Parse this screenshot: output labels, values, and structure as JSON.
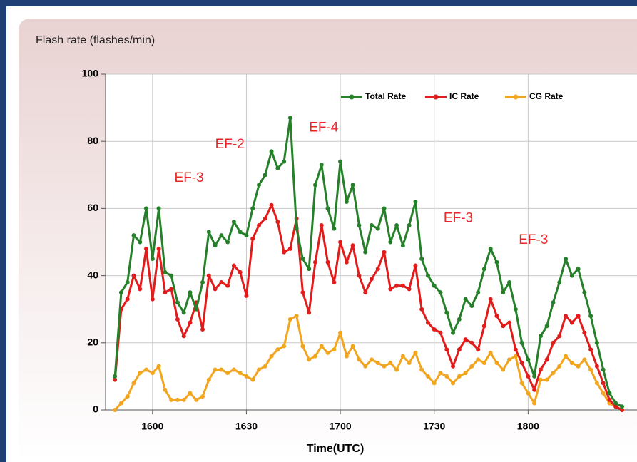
{
  "chart_data": {
    "type": "line",
    "title": "Flash rate (flashes/min)",
    "xlabel": "Time(UTC)",
    "x": [
      948,
      950,
      952,
      954,
      956,
      958,
      960,
      962,
      964,
      966,
      968,
      970,
      972,
      974,
      976,
      978,
      980,
      982,
      984,
      986,
      988,
      990,
      992,
      994,
      996,
      998,
      1000,
      1002,
      1004,
      1006,
      1008,
      1010,
      1012,
      1014,
      1016,
      1018,
      1020,
      1022,
      1024,
      1026,
      1028,
      1030,
      1032,
      1034,
      1036,
      1038,
      1040,
      1042,
      1044,
      1046,
      1048,
      1050,
      1052,
      1054,
      1056,
      1058,
      1060,
      1062,
      1064,
      1066,
      1068,
      1070,
      1072,
      1074,
      1076,
      1078,
      1080,
      1082,
      1084,
      1086,
      1088,
      1090,
      1092,
      1094,
      1096,
      1098,
      1100,
      1102,
      1104,
      1106,
      1108,
      1110
    ],
    "series": [
      {
        "name": "Total Rate",
        "color": "#26802a",
        "values": [
          10,
          35,
          38,
          52,
          50,
          60,
          45,
          60,
          41,
          40,
          32,
          29,
          35,
          30,
          38,
          53,
          49,
          52,
          50,
          56,
          53,
          52,
          60,
          67,
          70,
          77,
          72,
          74,
          87,
          54,
          45,
          42,
          67,
          73,
          60,
          54,
          74,
          62,
          67,
          55,
          47,
          55,
          54,
          60,
          50,
          55,
          49,
          55,
          62,
          45,
          40,
          37,
          35,
          29,
          23,
          27,
          33,
          31,
          35,
          42,
          48,
          44,
          35,
          38,
          30,
          20,
          15,
          10,
          22,
          25,
          32,
          38,
          45,
          40,
          42,
          35,
          28,
          20,
          12,
          5,
          2,
          1
        ]
      },
      {
        "name": "IC Rate",
        "color": "#e21b1b",
        "values": [
          9,
          30,
          33,
          40,
          36,
          48,
          33,
          48,
          35,
          36,
          27,
          22,
          26,
          32,
          24,
          40,
          36,
          38,
          37,
          43,
          41,
          34,
          51,
          55,
          57,
          61,
          56,
          47,
          48,
          57,
          35,
          29,
          44,
          55,
          44,
          38,
          50,
          44,
          49,
          40,
          35,
          39,
          42,
          47,
          36,
          37,
          37,
          36,
          43,
          30,
          26,
          24,
          23,
          18,
          13,
          18,
          21,
          20,
          18,
          25,
          33,
          28,
          25,
          26,
          18,
          14,
          10,
          6,
          12,
          15,
          20,
          22,
          28,
          26,
          28,
          23,
          18,
          13,
          8,
          3,
          1,
          0
        ]
      },
      {
        "name": "CG Rate",
        "color": "#f2a51f",
        "values": [
          0,
          2,
          4,
          8,
          11,
          12,
          11,
          13,
          6,
          3,
          3,
          3,
          5,
          3,
          4,
          9,
          12,
          12,
          11,
          12,
          11,
          10,
          9,
          12,
          13,
          16,
          18,
          19,
          27,
          28,
          19,
          15,
          16,
          19,
          17,
          18,
          23,
          16,
          19,
          15,
          13,
          15,
          14,
          13,
          14,
          12,
          16,
          14,
          17,
          12,
          10,
          8,
          11,
          10,
          8,
          10,
          11,
          13,
          15,
          14,
          17,
          14,
          12,
          15,
          16,
          8,
          5,
          2,
          9,
          9,
          11,
          13,
          16,
          14,
          13,
          15,
          12,
          8,
          5,
          2,
          1,
          0
        ]
      }
    ],
    "xlim": [
      945,
      1110
    ],
    "xticks": [
      {
        "value": 960,
        "label": "1600"
      },
      {
        "value": 990,
        "label": "1630"
      },
      {
        "value": 1020,
        "label": "1700"
      },
      {
        "value": 1050,
        "label": "1730"
      },
      {
        "value": 1080,
        "label": "1800"
      }
    ],
    "ylim": [
      0,
      100
    ],
    "yticks": [
      0,
      20,
      40,
      60,
      80,
      100
    ],
    "grid": true,
    "legend": "upper right",
    "annotations": [
      {
        "text": "EF-3",
        "x": 967,
        "y": 69
      },
      {
        "text": "EF-2",
        "x": 980,
        "y": 79
      },
      {
        "text": "EF-4",
        "x": 1010,
        "y": 84
      },
      {
        "text": "EF-3",
        "x": 1053,
        "y": 57
      },
      {
        "text": "EF-3",
        "x": 1077,
        "y": 50.5
      }
    ]
  }
}
